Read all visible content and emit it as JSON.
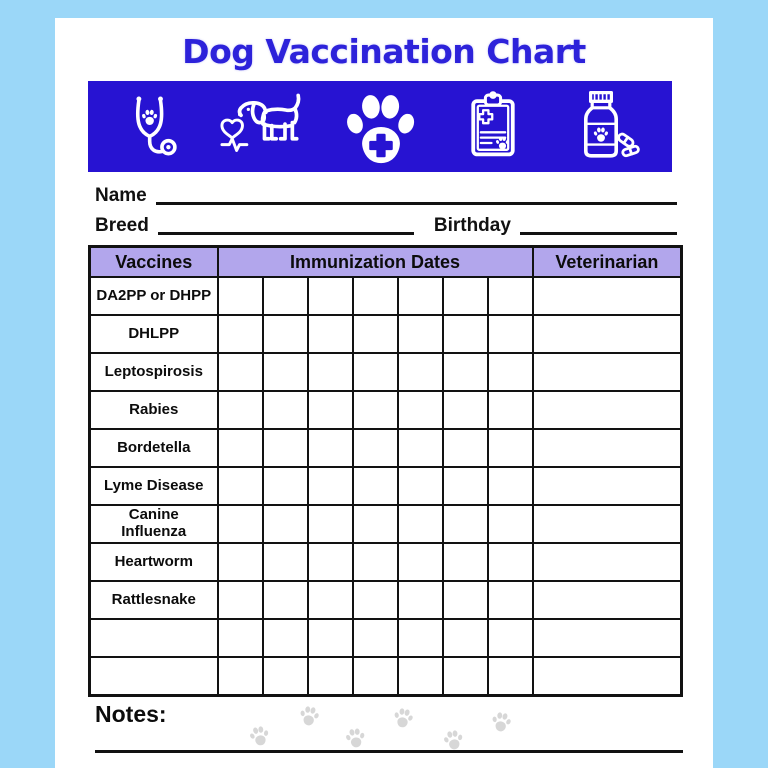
{
  "page": {
    "title": "Dog Vaccination Chart",
    "colors": {
      "background": "#9bd7f8",
      "banner_blue": "#2713d2",
      "title_blue": "#2d22da",
      "header_purple": "#b2a6ec",
      "line_black": "#121212",
      "paw_gray": "#d7d7d7"
    }
  },
  "banner": {
    "icons": [
      "stethoscope-paw-icon",
      "dog-heartbeat-icon",
      "paw-cross-icon",
      "medical-clipboard-icon",
      "medicine-bottle-pills-icon"
    ]
  },
  "fields": [
    {
      "label": "Name",
      "value": ""
    },
    {
      "label": "Breed",
      "value": ""
    },
    {
      "label": "Birthday",
      "value": ""
    }
  ],
  "table": {
    "headers": [
      "Vaccines",
      "Immunization Dates",
      "Veterinarian"
    ],
    "date_column_count": 7,
    "rows": [
      {
        "vaccine": "DA2PP or DHPP",
        "dates": [
          "",
          "",
          "",
          "",
          "",
          "",
          ""
        ],
        "veterinarian": ""
      },
      {
        "vaccine": "DHLPP",
        "dates": [
          "",
          "",
          "",
          "",
          "",
          "",
          ""
        ],
        "veterinarian": ""
      },
      {
        "vaccine": "Leptospirosis",
        "dates": [
          "",
          "",
          "",
          "",
          "",
          "",
          ""
        ],
        "veterinarian": ""
      },
      {
        "vaccine": "Rabies",
        "dates": [
          "",
          "",
          "",
          "",
          "",
          "",
          ""
        ],
        "veterinarian": ""
      },
      {
        "vaccine": "Bordetella",
        "dates": [
          "",
          "",
          "",
          "",
          "",
          "",
          ""
        ],
        "veterinarian": ""
      },
      {
        "vaccine": "Lyme Disease",
        "dates": [
          "",
          "",
          "",
          "",
          "",
          "",
          ""
        ],
        "veterinarian": ""
      },
      {
        "vaccine": "Canine Influenza",
        "dates": [
          "",
          "",
          "",
          "",
          "",
          "",
          ""
        ],
        "veterinarian": ""
      },
      {
        "vaccine": "Heartworm",
        "dates": [
          "",
          "",
          "",
          "",
          "",
          "",
          ""
        ],
        "veterinarian": ""
      },
      {
        "vaccine": "Rattlesnake",
        "dates": [
          "",
          "",
          "",
          "",
          "",
          "",
          ""
        ],
        "veterinarian": ""
      },
      {
        "vaccine": "",
        "dates": [
          "",
          "",
          "",
          "",
          "",
          "",
          ""
        ],
        "veterinarian": ""
      },
      {
        "vaccine": "",
        "dates": [
          "",
          "",
          "",
          "",
          "",
          "",
          ""
        ],
        "veterinarian": ""
      }
    ]
  },
  "notes": {
    "label": "Notes:",
    "value": "",
    "paw_print_count": 6
  }
}
